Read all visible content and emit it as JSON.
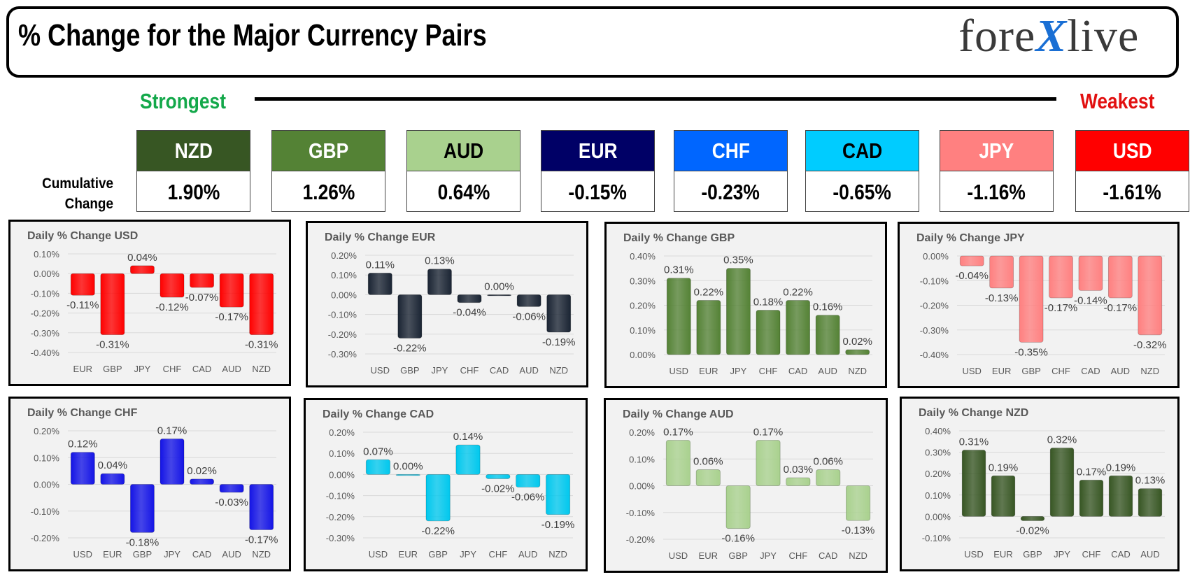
{
  "header": {
    "title": "% Change for the Major Currency Pairs",
    "logo_left": "fore",
    "logo_x": "X",
    "logo_right": "live"
  },
  "scale": {
    "strongest": "Strongest",
    "weakest": "Weakest"
  },
  "cumulative": {
    "label_line1": "Cumulative",
    "label_line2": "Change",
    "items": [
      {
        "currency": "NZD",
        "value": "1.90%",
        "color": "#375623",
        "text_color": "#ffffff"
      },
      {
        "currency": "GBP",
        "value": "1.26%",
        "color": "#548235",
        "text_color": "#ffffff"
      },
      {
        "currency": "AUD",
        "value": "0.64%",
        "color": "#a9d18e",
        "text_color": "#000000"
      },
      {
        "currency": "EUR",
        "value": "-0.15%",
        "color": "#000066",
        "text_color": "#ffffff"
      },
      {
        "currency": "CHF",
        "value": "-0.23%",
        "color": "#0066ff",
        "text_color": "#ffffff"
      },
      {
        "currency": "CAD",
        "value": "-0.65%",
        "color": "#00ccff",
        "text_color": "#000000"
      },
      {
        "currency": "JPY",
        "value": "-1.16%",
        "color": "#ff8080",
        "text_color": "#ffffff"
      },
      {
        "currency": "USD",
        "value": "-1.61%",
        "color": "#ff0000",
        "text_color": "#ffffff"
      }
    ]
  },
  "chart_data": [
    {
      "type": "bar",
      "title": "Daily % Change USD",
      "categories": [
        "EUR",
        "GBP",
        "JPY",
        "CHF",
        "CAD",
        "AUD",
        "NZD"
      ],
      "values": [
        -0.11,
        -0.31,
        0.04,
        -0.12,
        -0.07,
        -0.17,
        -0.31
      ],
      "labels": [
        "-0.11%",
        "-0.31%",
        "0.04%",
        "-0.12%",
        "-0.07%",
        "-0.17%",
        "-0.31%"
      ],
      "yticks": [
        0.1,
        0.0,
        -0.1,
        -0.2,
        -0.3,
        -0.4
      ],
      "ytick_labels": [
        "0.10%",
        "0.00%",
        "-0.10%",
        "-0.20%",
        "-0.30%",
        "-0.40%"
      ],
      "ylim": [
        -0.4,
        0.1
      ],
      "color": "#ff0000"
    },
    {
      "type": "bar",
      "title": "Daily % Change EUR",
      "categories": [
        "USD",
        "GBP",
        "JPY",
        "CHF",
        "CAD",
        "AUD",
        "NZD"
      ],
      "values": [
        0.11,
        -0.22,
        0.13,
        -0.04,
        0.0,
        -0.06,
        -0.19
      ],
      "labels": [
        "0.11%",
        "-0.22%",
        "0.13%",
        "-0.04%",
        "0.00%",
        "-0.06%",
        "-0.19%"
      ],
      "yticks": [
        0.2,
        0.1,
        0.0,
        -0.1,
        -0.2,
        -0.3
      ],
      "ytick_labels": [
        "0.20%",
        "0.10%",
        "0.00%",
        "-0.10%",
        "-0.20%",
        "-0.30%"
      ],
      "ylim": [
        -0.3,
        0.2
      ],
      "color": "#1a2433"
    },
    {
      "type": "bar",
      "title": "Daily % Change GBP",
      "categories": [
        "USD",
        "EUR",
        "JPY",
        "CHF",
        "CAD",
        "AUD",
        "NZD"
      ],
      "values": [
        0.31,
        0.22,
        0.35,
        0.18,
        0.22,
        0.16,
        0.02
      ],
      "labels": [
        "0.31%",
        "0.22%",
        "0.35%",
        "0.18%",
        "0.22%",
        "0.16%",
        "0.02%"
      ],
      "yticks": [
        0.4,
        0.3,
        0.2,
        0.1,
        0.0
      ],
      "ytick_labels": [
        "0.40%",
        "0.30%",
        "0.20%",
        "0.10%",
        "0.00%"
      ],
      "ylim": [
        0.0,
        0.4
      ],
      "color": "#548235"
    },
    {
      "type": "bar",
      "title": "Daily % Change JPY",
      "categories": [
        "USD",
        "EUR",
        "GBP",
        "CHF",
        "CAD",
        "AUD",
        "NZD"
      ],
      "values": [
        -0.04,
        -0.13,
        -0.35,
        -0.17,
        -0.14,
        -0.17,
        -0.32
      ],
      "labels": [
        "-0.04%",
        "-0.13%",
        "-0.35%",
        "-0.17%",
        "-0.14%",
        "-0.17%",
        "-0.32%"
      ],
      "yticks": [
        0.0,
        -0.1,
        -0.2,
        -0.3,
        -0.4
      ],
      "ytick_labels": [
        "0.00%",
        "-0.10%",
        "-0.20%",
        "-0.30%",
        "-0.40%"
      ],
      "ylim": [
        -0.4,
        0.0
      ],
      "color": "#ff8080"
    },
    {
      "type": "bar",
      "title": "Daily % Change CHF",
      "categories": [
        "USD",
        "EUR",
        "GBP",
        "JPY",
        "CAD",
        "AUD",
        "NZD"
      ],
      "values": [
        0.12,
        0.04,
        -0.18,
        0.17,
        0.02,
        -0.03,
        -0.17
      ],
      "labels": [
        "0.12%",
        "0.04%",
        "-0.18%",
        "0.17%",
        "0.02%",
        "-0.03%",
        "-0.17%"
      ],
      "yticks": [
        0.2,
        0.1,
        0.0,
        -0.1,
        -0.2
      ],
      "ytick_labels": [
        "0.20%",
        "0.10%",
        "0.00%",
        "-0.10%",
        "-0.20%"
      ],
      "ylim": [
        -0.2,
        0.2
      ],
      "color": "#1414e6"
    },
    {
      "type": "bar",
      "title": "Daily % Change CAD",
      "categories": [
        "USD",
        "EUR",
        "GBP",
        "JPY",
        "CHF",
        "AUD",
        "NZD"
      ],
      "values": [
        0.07,
        0.0,
        -0.22,
        0.14,
        -0.02,
        -0.06,
        -0.19
      ],
      "labels": [
        "0.07%",
        "0.00%",
        "-0.22%",
        "0.14%",
        "-0.02%",
        "-0.06%",
        "-0.19%"
      ],
      "yticks": [
        0.2,
        0.1,
        0.0,
        -0.1,
        -0.2,
        -0.3
      ],
      "ytick_labels": [
        "0.20%",
        "0.10%",
        "0.00%",
        "-0.10%",
        "-0.20%",
        "-0.30%"
      ],
      "ylim": [
        -0.3,
        0.2
      ],
      "color": "#00c8ee"
    },
    {
      "type": "bar",
      "title": "Daily % Change AUD",
      "categories": [
        "USD",
        "EUR",
        "GBP",
        "JPY",
        "CHF",
        "CAD",
        "NZD"
      ],
      "values": [
        0.17,
        0.06,
        -0.16,
        0.17,
        0.03,
        0.06,
        -0.13
      ],
      "labels": [
        "0.17%",
        "0.06%",
        "-0.16%",
        "0.17%",
        "0.03%",
        "0.06%",
        "-0.13%"
      ],
      "yticks": [
        0.2,
        0.1,
        0.0,
        -0.1,
        -0.2
      ],
      "ytick_labels": [
        "0.20%",
        "0.10%",
        "0.00%",
        "-0.10%",
        "-0.20%"
      ],
      "ylim": [
        -0.2,
        0.2
      ],
      "color": "#a9d18e"
    },
    {
      "type": "bar",
      "title": "Daily % Change NZD",
      "categories": [
        "USD",
        "EUR",
        "GBP",
        "JPY",
        "CHF",
        "CAD",
        "AUD"
      ],
      "values": [
        0.31,
        0.19,
        -0.02,
        0.32,
        0.17,
        0.19,
        0.13
      ],
      "labels": [
        "0.31%",
        "0.19%",
        "-0.02%",
        "0.32%",
        "0.17%",
        "0.19%",
        "0.13%"
      ],
      "yticks": [
        0.4,
        0.3,
        0.2,
        0.1,
        0.0,
        -0.1
      ],
      "ytick_labels": [
        "0.40%",
        "0.30%",
        "0.20%",
        "0.10%",
        "0.00%",
        "-0.10%"
      ],
      "ylim": [
        -0.1,
        0.4
      ],
      "color": "#375623"
    }
  ]
}
